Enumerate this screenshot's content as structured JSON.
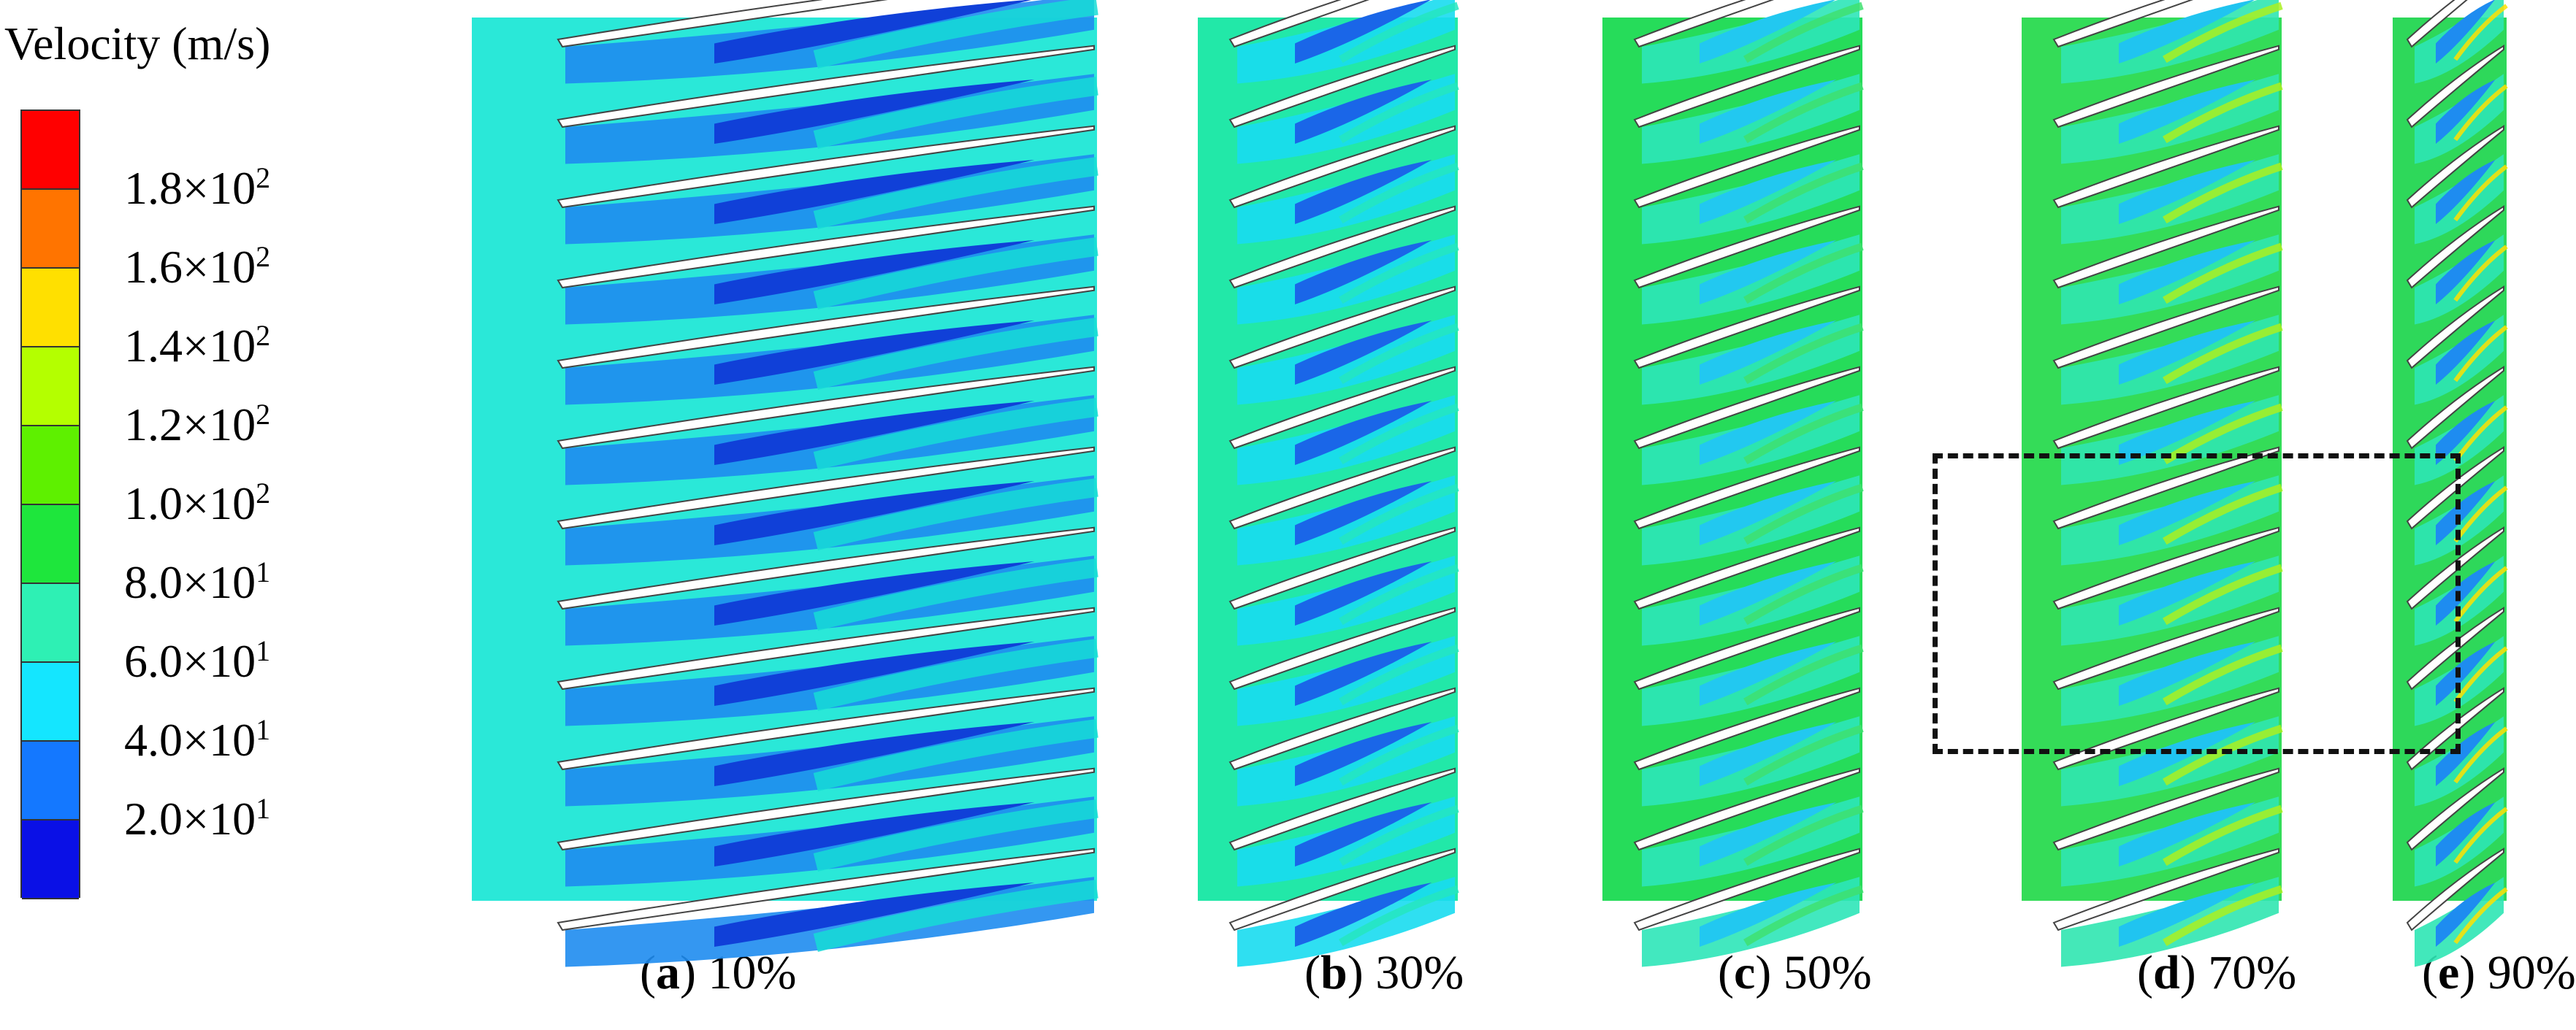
{
  "colorbar": {
    "title": "Velocity (m/s)",
    "labels": [
      {
        "mantissa": "1.8",
        "exponent": "2"
      },
      {
        "mantissa": "1.6",
        "exponent": "2"
      },
      {
        "mantissa": "1.4",
        "exponent": "2"
      },
      {
        "mantissa": "1.2",
        "exponent": "2"
      },
      {
        "mantissa": "1.0",
        "exponent": "2"
      },
      {
        "mantissa": "8.0",
        "exponent": "1"
      },
      {
        "mantissa": "6.0",
        "exponent": "1"
      },
      {
        "mantissa": "4.0",
        "exponent": "1"
      },
      {
        "mantissa": "2.0",
        "exponent": "1"
      }
    ],
    "colors": [
      "#ff0000",
      "#ff7400",
      "#ffe000",
      "#b4ff00",
      "#5ef000",
      "#1ee63c",
      "#2ef0b4",
      "#14e6ff",
      "#1478ff",
      "#0a10e6"
    ]
  },
  "panels": [
    {
      "letter": "a",
      "label": "10%",
      "base": "#2ae8d8",
      "passage": "#1e8cf0",
      "core": "#1040d8",
      "shear": "#16dcd6"
    },
    {
      "letter": "b",
      "label": "30%",
      "base": "#22e8a8",
      "passage": "#18dcf0",
      "core": "#1a66e8",
      "shear": "#24e6c0"
    },
    {
      "letter": "c",
      "label": "50%",
      "base": "#26dc5a",
      "passage": "#2ee6b8",
      "core": "#22c8f0",
      "shear": "#3ee070"
    },
    {
      "letter": "d",
      "label": "70%",
      "base": "#34dc58",
      "passage": "#30e6b0",
      "core": "#20c4f0",
      "shear": "#aaf020"
    },
    {
      "letter": "e",
      "label": "90%",
      "base": "#2ed85a",
      "passage": "#2ee6b4",
      "core": "#1e8cf0",
      "shear": "#ffe000"
    }
  ]
}
